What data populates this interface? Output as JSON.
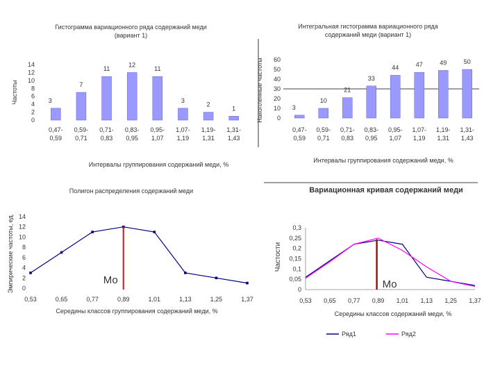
{
  "chart_data": [
    {
      "type": "bar",
      "title": "Гистограмма вариационного ряда содержаний меди",
      "subtitle": "(вариант 1)",
      "xlabel": "Интервалы группирования содержаний меди, %",
      "ylabel": "Частоты",
      "categories": [
        "0,47-\n0,59",
        "0,59-\n0,71",
        "0,71-\n0,83",
        "0,83-\n0,95",
        "0,95-\n1,07",
        "1,07-\n1,19",
        "1,19-\n1,31",
        "1,31-\n1,43"
      ],
      "values": [
        3,
        7,
        11,
        12,
        11,
        3,
        2,
        1
      ],
      "ylim": [
        0,
        14
      ],
      "yticks": [
        "0",
        "2",
        "4",
        "6",
        "8",
        "10",
        "12",
        "14"
      ],
      "bar_color": "#9999ff"
    },
    {
      "type": "bar",
      "title": "Интегральная гистограмма вариационного ряда",
      "subtitle": "содержаний меди (вариант 1)",
      "xlabel": "Интервалы группирования содержаний меди, %",
      "ylabel": "Накопленные частоты",
      "categories": [
        "0,47-\n0,59",
        "0,59-\n0,71",
        "0,71-\n0,83",
        "0,83-\n0,95",
        "0,95-\n1,07",
        "1,07-\n1,19",
        "1,19-\n1,31",
        "1,31-\n1,43"
      ],
      "values": [
        3,
        10,
        21,
        33,
        44,
        47,
        49,
        50
      ],
      "ylim": [
        0,
        60
      ],
      "yticks": [
        "0",
        "10",
        "20",
        "30",
        "40",
        "50",
        "60"
      ],
      "reference_line": 30,
      "bar_color": "#9999ff"
    },
    {
      "type": "line",
      "title": "Полигон распределения содержаний меди",
      "xlabel": "Середины классов группирования содержаний меди, %",
      "ylabel": "Эмпирические частоты, ед.",
      "x": [
        "0,53",
        "0,65",
        "0,77",
        "0,89",
        "1,01",
        "1,13",
        "1,25",
        "1,37"
      ],
      "values": [
        3,
        7,
        11,
        12,
        11,
        3,
        2,
        1
      ],
      "ylim": [
        0,
        14
      ],
      "yticks": [
        "0",
        "2",
        "4",
        "6",
        "8",
        "10",
        "12",
        "14"
      ],
      "mode": {
        "x_index": 3,
        "label": "Мо"
      },
      "line_color": "#000080"
    },
    {
      "type": "line",
      "title": "Вариационная кривая содержаний меди",
      "xlabel": "Середины классов содержаний меди, %",
      "ylabel": "Частости",
      "x": [
        "0,53",
        "0,65",
        "0,77",
        "0,89",
        "1,01",
        "1,13",
        "1,25",
        "1,37"
      ],
      "ylim": [
        0,
        0.3
      ],
      "yticks": [
        "0",
        "0,05",
        "0,1",
        "0,15",
        "0,2",
        "0,25",
        "0,3"
      ],
      "series": [
        {
          "name": "Ряд1",
          "color": "#000080",
          "values": [
            0.06,
            0.14,
            0.22,
            0.24,
            0.22,
            0.06,
            0.04,
            0.02
          ]
        },
        {
          "name": "Ряд2",
          "color": "#ff00ff",
          "values": [
            0.055,
            0.135,
            0.22,
            0.25,
            0.19,
            0.11,
            0.04,
            0.015
          ]
        }
      ],
      "mode": {
        "x_index": 3,
        "label": "Мо"
      }
    }
  ]
}
